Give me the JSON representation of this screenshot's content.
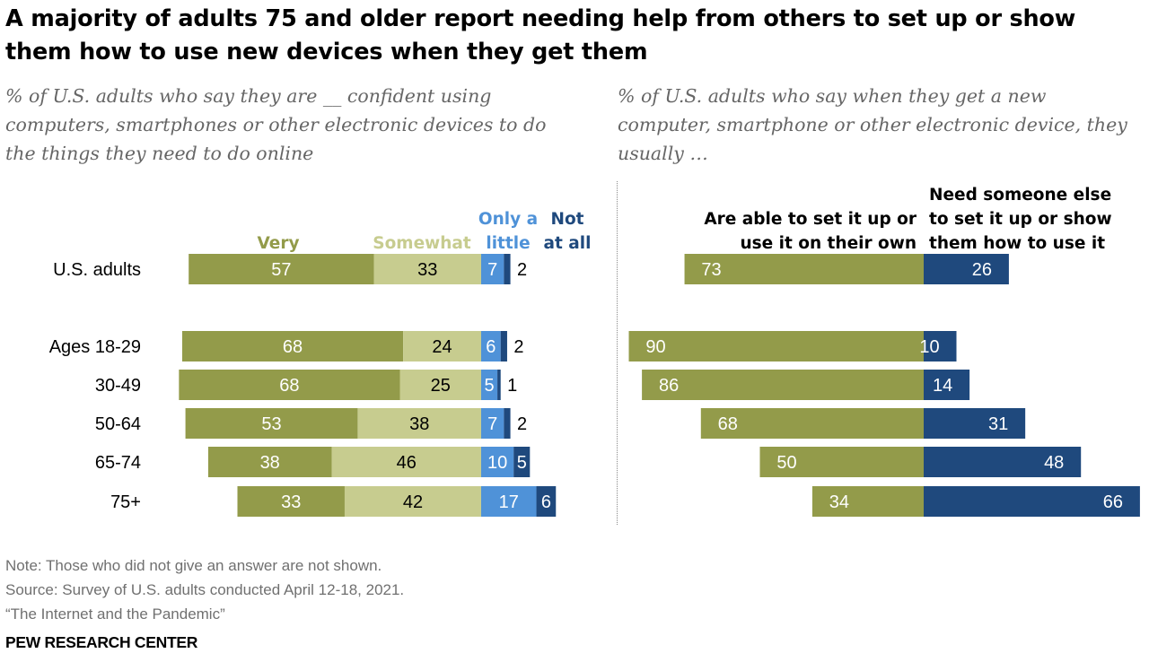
{
  "title": "A majority of adults 75 and older report needing help from others to set up or show them how to use new devices when they get them",
  "left_subtitle": "% of U.S. adults who say they are __ confident using computers, smartphones or other electronic devices to do the things they need to do online",
  "right_subtitle": "% of U.S. adults who say when they get a new computer, smartphone or other electronic device, they usually …",
  "footer": {
    "note": "Note: Those who did not give an answer are not shown.",
    "source": "Source: Survey of U.S. adults conducted April 12-18, 2021.",
    "report": "“The Internet and the Pandemic”"
  },
  "brand": "PEW RESEARCH CENTER",
  "colors": {
    "very": "#939b4a",
    "somewhat": "#c7cc8f",
    "only_a_little": "#4f92d8",
    "not_at_all": "#1f497d",
    "able": "#939b4a",
    "need_help": "#1f497d"
  },
  "chart_data": [
    {
      "type": "bar",
      "orientation": "horizontal",
      "stacked": true,
      "categories": [
        "U.S. adults",
        "Ages 18-29",
        "30-49",
        "50-64",
        "65-74",
        "75+"
      ],
      "series": [
        {
          "name": "Very",
          "values": [
            57,
            68,
            68,
            53,
            38,
            33
          ]
        },
        {
          "name": "Somewhat",
          "values": [
            33,
            24,
            25,
            38,
            46,
            42
          ]
        },
        {
          "name": "Only a little",
          "values": [
            7,
            6,
            5,
            7,
            10,
            17
          ]
        },
        {
          "name": "Not at all",
          "values": [
            2,
            2,
            1,
            2,
            5,
            6
          ]
        }
      ]
    },
    {
      "type": "bar",
      "orientation": "horizontal",
      "diverging": true,
      "categories": [
        "U.S. adults",
        "Ages 18-29",
        "30-49",
        "50-64",
        "65-74",
        "75+"
      ],
      "series": [
        {
          "name": "Are able to set it up or use it on their own",
          "values": [
            73,
            90,
            86,
            68,
            50,
            34
          ]
        },
        {
          "name": "Need someone else to set it up or show them how to use it",
          "values": [
            26,
            10,
            14,
            31,
            48,
            66
          ]
        }
      ]
    }
  ]
}
